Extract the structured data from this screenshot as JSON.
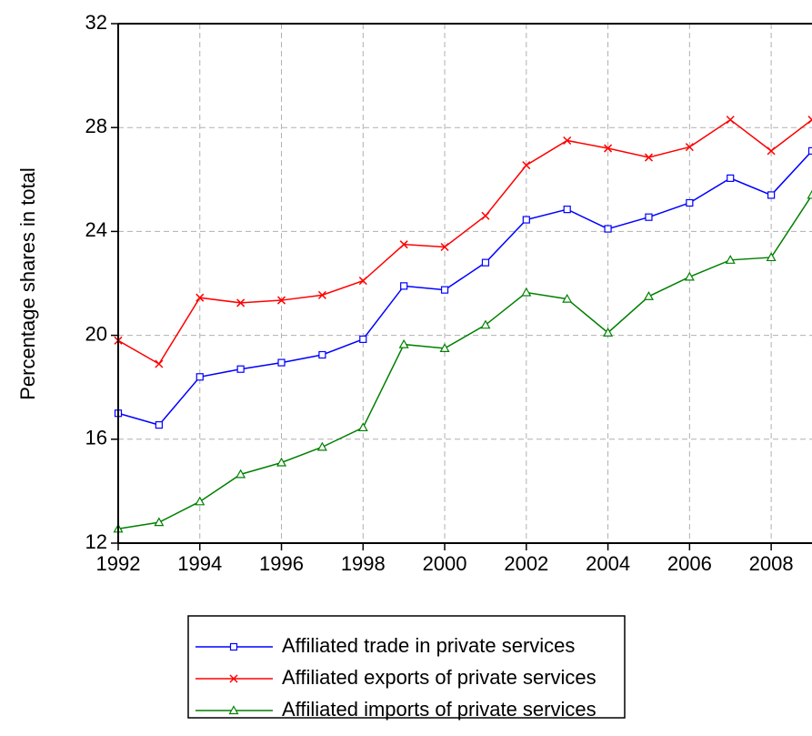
{
  "chart_data": {
    "type": "line",
    "y_label": "Percentage shares in total",
    "x": [
      1992,
      1993,
      1994,
      1995,
      1996,
      1997,
      1998,
      1999,
      2000,
      2001,
      2002,
      2003,
      2004,
      2005,
      2006,
      2007,
      2008,
      2009
    ],
    "series": [
      {
        "name": "Affiliated trade in private services",
        "color": "#0000ff",
        "marker": "square",
        "values": [
          17.0,
          16.55,
          18.4,
          18.7,
          18.95,
          19.25,
          19.85,
          21.9,
          21.75,
          22.8,
          24.45,
          24.85,
          24.1,
          24.55,
          25.1,
          26.05,
          25.4,
          27.1
        ]
      },
      {
        "name": "Affiliated exports of private services",
        "color": "#ff0000",
        "marker": "x",
        "values": [
          19.8,
          18.9,
          21.45,
          21.25,
          21.35,
          21.55,
          22.1,
          23.5,
          23.4,
          24.6,
          26.55,
          27.5,
          27.2,
          26.85,
          27.25,
          28.3,
          27.1,
          28.3
        ]
      },
      {
        "name": "Affiliated imports of private services",
        "color": "#008000",
        "marker": "triangle",
        "values": [
          12.55,
          12.8,
          13.6,
          14.65,
          15.1,
          15.7,
          16.45,
          19.65,
          19.5,
          20.4,
          21.65,
          21.4,
          20.1,
          21.5,
          22.25,
          22.9,
          23.0,
          25.4
        ]
      }
    ],
    "xlim": [
      1992,
      2009
    ],
    "xticks": [
      1992,
      1994,
      1996,
      1998,
      2000,
      2002,
      2004,
      2006,
      2008
    ],
    "ylim": [
      12,
      32
    ],
    "yticks": [
      12,
      16,
      20,
      24,
      28,
      32
    ],
    "grid": true,
    "legend": "bottom"
  }
}
